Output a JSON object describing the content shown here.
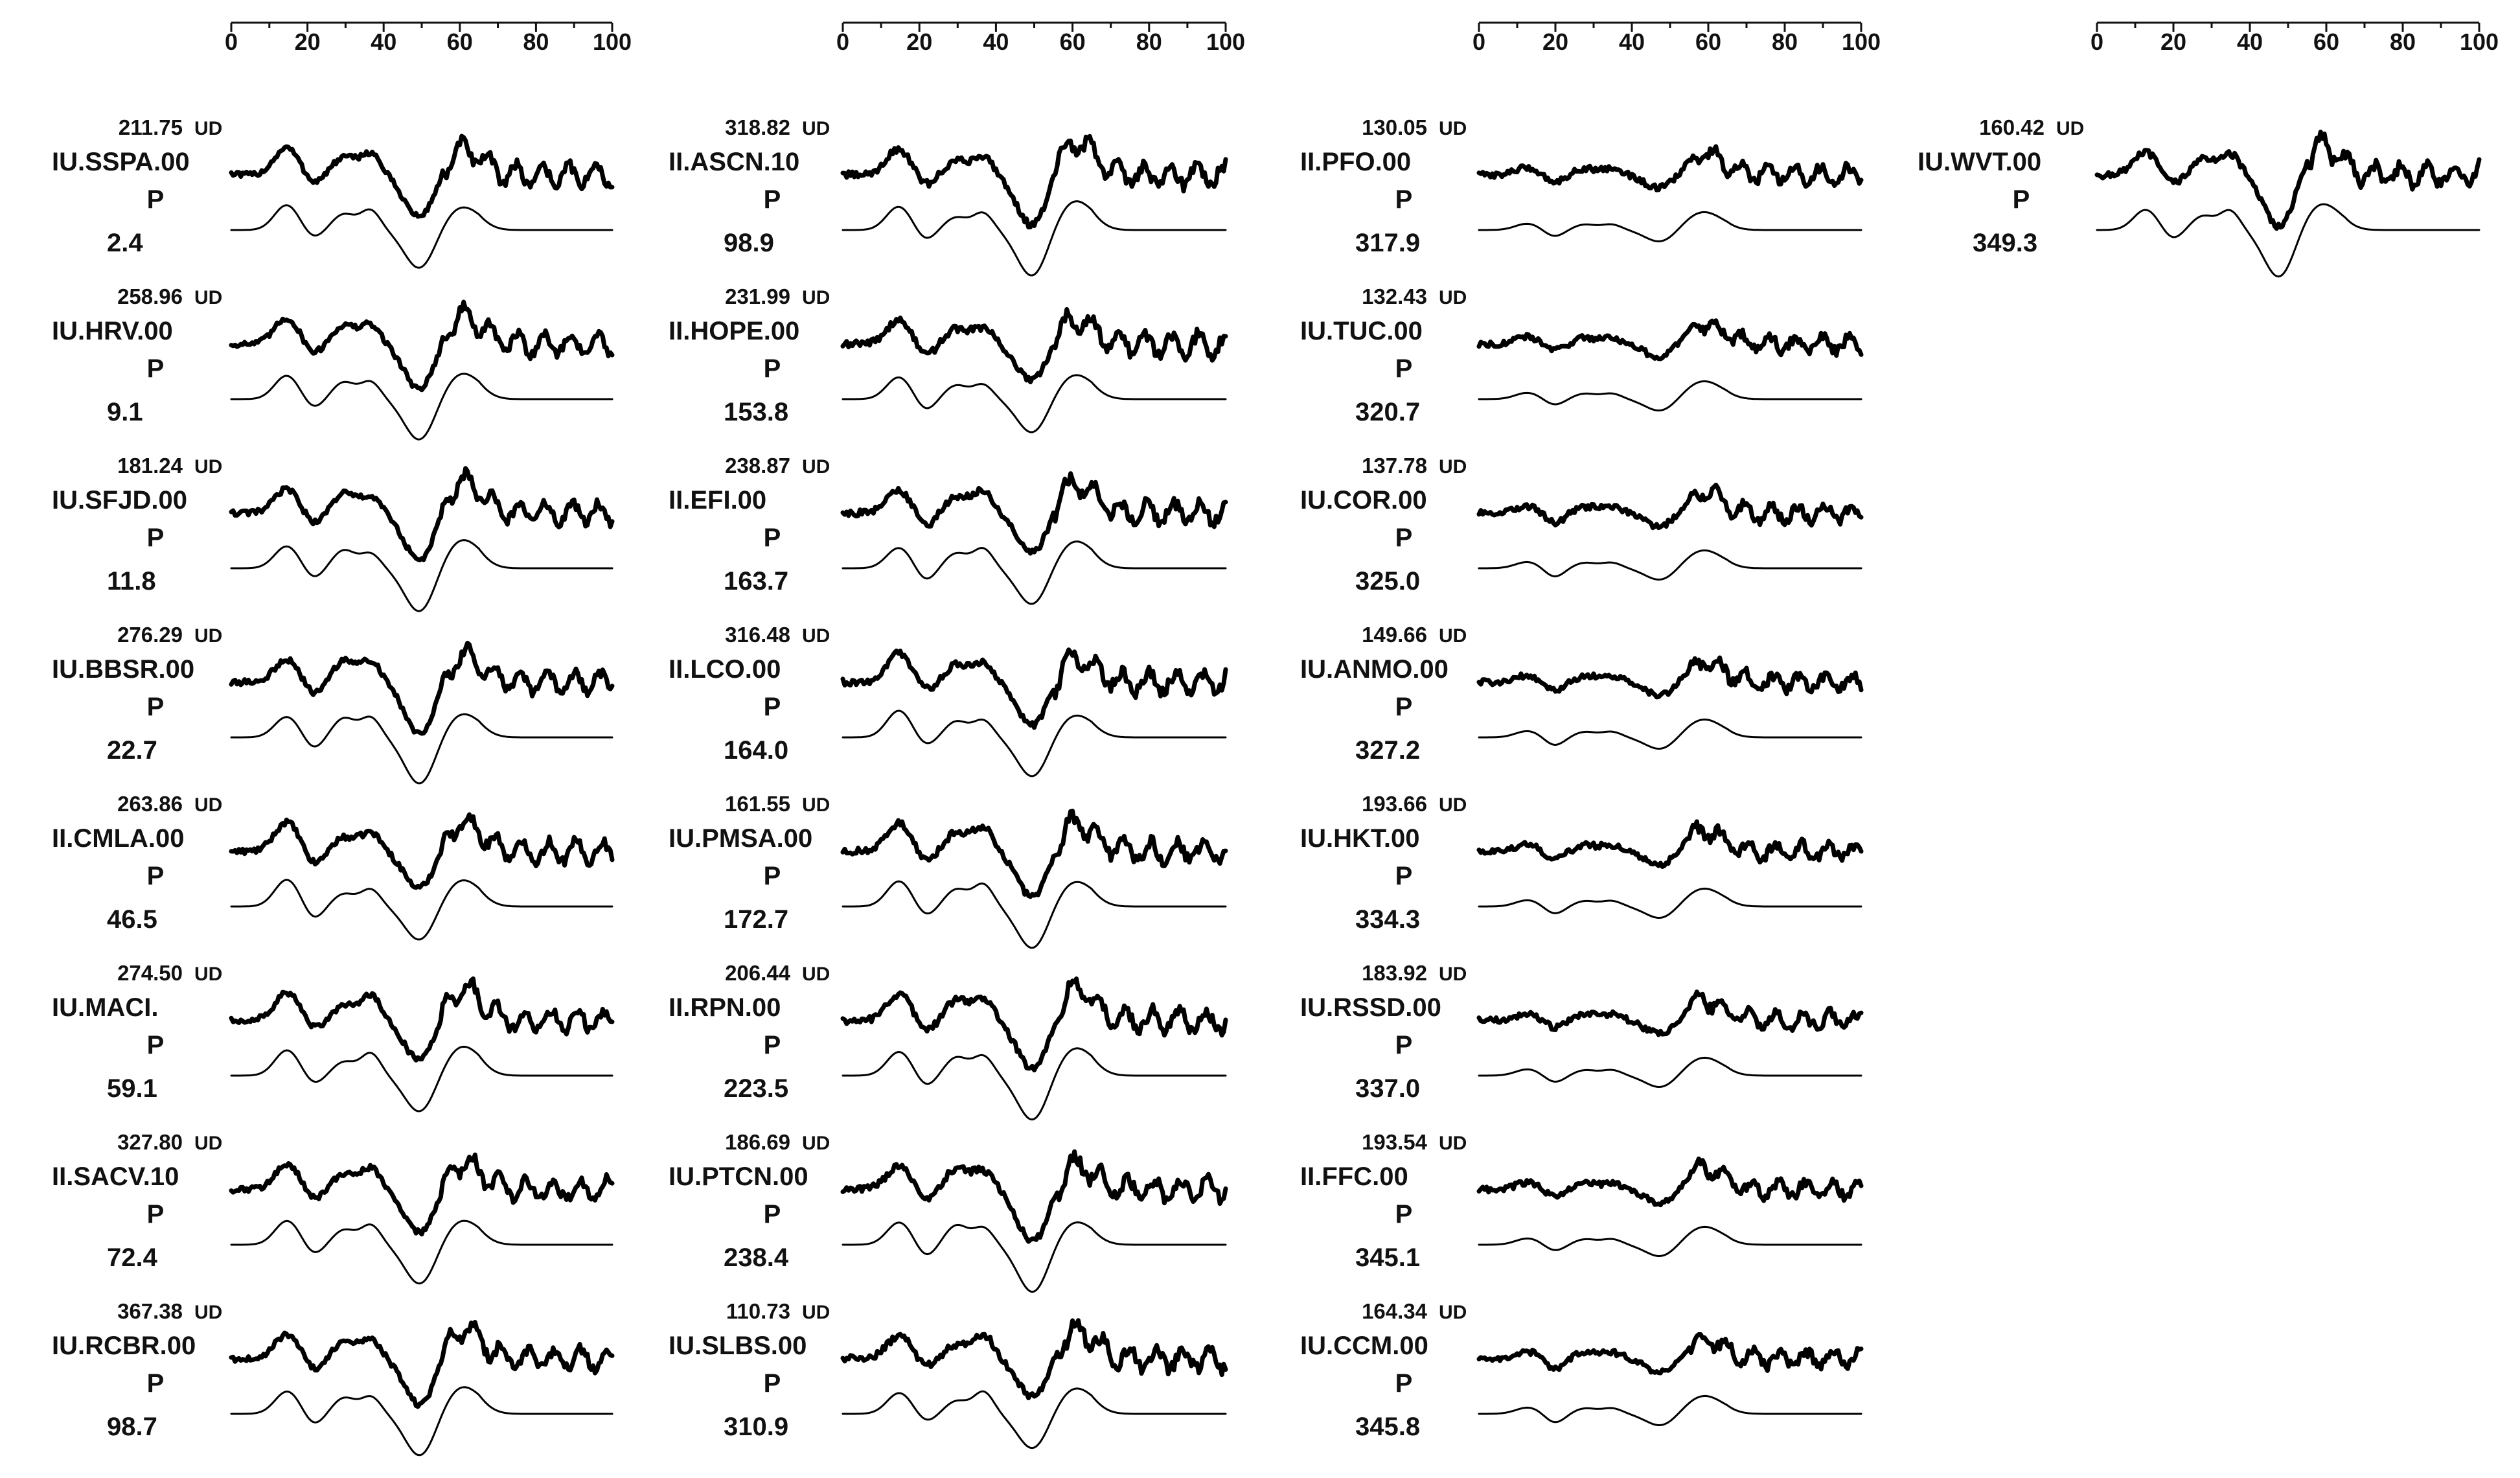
{
  "chart_data": {
    "type": "line",
    "description_axis": "Time axis shown above each column",
    "x_ticks": [
      "0",
      "20",
      "40",
      "60",
      "80",
      "100"
    ],
    "xlim": [
      0,
      100
    ],
    "columns": [
      {
        "stations": [
          {
            "amplitude": "211.75",
            "component": "UD",
            "station": "IU.SSPA.00",
            "phase": "P",
            "azimuth": "2.4"
          },
          {
            "amplitude": "258.96",
            "component": "UD",
            "station": "IU.HRV.00",
            "phase": "P",
            "azimuth": "9.1"
          },
          {
            "amplitude": "181.24",
            "component": "UD",
            "station": "IU.SFJD.00",
            "phase": "P",
            "azimuth": "11.8"
          },
          {
            "amplitude": "276.29",
            "component": "UD",
            "station": "IU.BBSR.00",
            "phase": "P",
            "azimuth": "22.7"
          },
          {
            "amplitude": "263.86",
            "component": "UD",
            "station": "II.CMLA.00",
            "phase": "P",
            "azimuth": "46.5"
          },
          {
            "amplitude": "274.50",
            "component": "UD",
            "station": "IU.MACI.",
            "phase": "P",
            "azimuth": "59.1"
          },
          {
            "amplitude": "327.80",
            "component": "UD",
            "station": "II.SACV.10",
            "phase": "P",
            "azimuth": "72.4"
          },
          {
            "amplitude": "367.38",
            "component": "UD",
            "station": "IU.RCBR.00",
            "phase": "P",
            "azimuth": "98.7"
          }
        ]
      },
      {
        "stations": [
          {
            "amplitude": "318.82",
            "component": "UD",
            "station": "II.ASCN.10",
            "phase": "P",
            "azimuth": "98.9"
          },
          {
            "amplitude": "231.99",
            "component": "UD",
            "station": "II.HOPE.00",
            "phase": "P",
            "azimuth": "153.8"
          },
          {
            "amplitude": "238.87",
            "component": "UD",
            "station": "II.EFI.00",
            "phase": "P",
            "azimuth": "163.7"
          },
          {
            "amplitude": "316.48",
            "component": "UD",
            "station": "II.LCO.00",
            "phase": "P",
            "azimuth": "164.0"
          },
          {
            "amplitude": "161.55",
            "component": "UD",
            "station": "IU.PMSA.00",
            "phase": "P",
            "azimuth": "172.7"
          },
          {
            "amplitude": "206.44",
            "component": "UD",
            "station": "II.RPN.00",
            "phase": "P",
            "azimuth": "223.5"
          },
          {
            "amplitude": "186.69",
            "component": "UD",
            "station": "IU.PTCN.00",
            "phase": "P",
            "azimuth": "238.4"
          },
          {
            "amplitude": "110.73",
            "component": "UD",
            "station": "IU.SLBS.00",
            "phase": "P",
            "azimuth": "310.9"
          }
        ]
      },
      {
        "stations": [
          {
            "amplitude": "130.05",
            "component": "UD",
            "station": "II.PFO.00",
            "phase": "P",
            "azimuth": "317.9"
          },
          {
            "amplitude": "132.43",
            "component": "UD",
            "station": "IU.TUC.00",
            "phase": "P",
            "azimuth": "320.7"
          },
          {
            "amplitude": "137.78",
            "component": "UD",
            "station": "IU.COR.00",
            "phase": "P",
            "azimuth": "325.0"
          },
          {
            "amplitude": "149.66",
            "component": "UD",
            "station": "IU.ANMO.00",
            "phase": "P",
            "azimuth": "327.2"
          },
          {
            "amplitude": "193.66",
            "component": "UD",
            "station": "IU.HKT.00",
            "phase": "P",
            "azimuth": "334.3"
          },
          {
            "amplitude": "183.92",
            "component": "UD",
            "station": "IU.RSSD.00",
            "phase": "P",
            "azimuth": "337.0"
          },
          {
            "amplitude": "193.54",
            "component": "UD",
            "station": "II.FFC.00",
            "phase": "P",
            "azimuth": "345.1"
          },
          {
            "amplitude": "164.34",
            "component": "UD",
            "station": "IU.CCM.00",
            "phase": "P",
            "azimuth": "345.8"
          }
        ]
      },
      {
        "stations": [
          {
            "amplitude": "160.42",
            "component": "UD",
            "station": "IU.WVT.00",
            "phase": "P",
            "azimuth": "349.3"
          }
        ]
      }
    ]
  }
}
